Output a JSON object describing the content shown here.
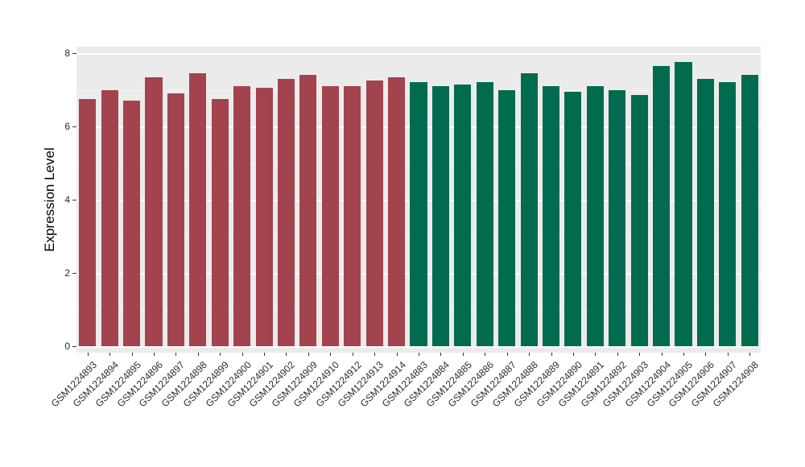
{
  "chart_data": {
    "type": "bar",
    "title": "",
    "xlabel": "",
    "ylabel": "Expression Level",
    "ylim": [
      0,
      8
    ],
    "yticks": [
      0,
      2,
      4,
      6,
      8
    ],
    "yticks_minor": [
      1,
      3,
      5,
      7
    ],
    "grid": true,
    "legend": "none",
    "panel_background": "#EBEBEB",
    "grid_color": "#FFFFFF",
    "groups": [
      {
        "name": "maroon-group",
        "color": "#A3434E",
        "bars": [
          {
            "label": "GSM1224893",
            "value": 6.75
          },
          {
            "label": "GSM1224894",
            "value": 7.0
          },
          {
            "label": "GSM1224895",
            "value": 6.7
          },
          {
            "label": "GSM1224896",
            "value": 7.35
          },
          {
            "label": "GSM1224897",
            "value": 6.9
          },
          {
            "label": "GSM1224898",
            "value": 7.45
          },
          {
            "label": "GSM1224899",
            "value": 6.75
          },
          {
            "label": "GSM1224900",
            "value": 7.1
          },
          {
            "label": "GSM1224901",
            "value": 7.05
          },
          {
            "label": "GSM1224902",
            "value": 7.3
          },
          {
            "label": "GSM1224909",
            "value": 7.4
          },
          {
            "label": "GSM1224910",
            "value": 7.1
          },
          {
            "label": "GSM1224912",
            "value": 7.1
          },
          {
            "label": "GSM1224913",
            "value": 7.25
          },
          {
            "label": "GSM1224914",
            "value": 7.35
          }
        ]
      },
      {
        "name": "green-group",
        "color": "#016B4F",
        "bars": [
          {
            "label": "GSM1224883",
            "value": 7.2
          },
          {
            "label": "GSM1224884",
            "value": 7.1
          },
          {
            "label": "GSM1224885",
            "value": 7.15
          },
          {
            "label": "GSM1224886",
            "value": 7.2
          },
          {
            "label": "GSM1224887",
            "value": 7.0
          },
          {
            "label": "GSM1224888",
            "value": 7.45
          },
          {
            "label": "GSM1224889",
            "value": 7.1
          },
          {
            "label": "GSM1224890",
            "value": 6.95
          },
          {
            "label": "GSM1224891",
            "value": 7.1
          },
          {
            "label": "GSM1224892",
            "value": 7.0
          },
          {
            "label": "GSM1224903",
            "value": 6.85
          },
          {
            "label": "GSM1224904",
            "value": 7.65
          },
          {
            "label": "GSM1224905",
            "value": 7.75
          },
          {
            "label": "GSM1224906",
            "value": 7.3
          },
          {
            "label": "GSM1224907",
            "value": 7.2
          },
          {
            "label": "GSM1224908",
            "value": 7.4
          }
        ]
      }
    ]
  }
}
